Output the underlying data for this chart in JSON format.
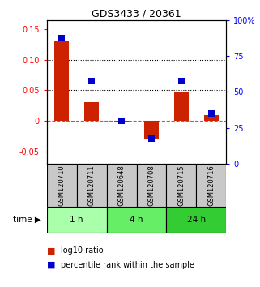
{
  "title": "GDS3433 / 20361",
  "samples": [
    "GSM120710",
    "GSM120711",
    "GSM120648",
    "GSM120708",
    "GSM120715",
    "GSM120716"
  ],
  "log10_ratio": [
    0.13,
    0.03,
    -0.002,
    -0.03,
    0.047,
    0.01
  ],
  "percentile_rank": [
    87.5,
    57.5,
    30.0,
    17.5,
    57.5,
    35.0
  ],
  "ylim_left": [
    -0.07,
    0.165
  ],
  "ylim_right": [
    0,
    100
  ],
  "yticks_left": [
    -0.05,
    0.0,
    0.05,
    0.1,
    0.15
  ],
  "ytick_labels_left": [
    "-0.05",
    "0",
    "0.05",
    "0.10",
    "0.15"
  ],
  "yticks_right": [
    0,
    25,
    50,
    75,
    100
  ],
  "ytick_labels_right": [
    "0",
    "25",
    "50",
    "75",
    "100%"
  ],
  "hlines": [
    0.05,
    0.1
  ],
  "bar_color": "#cc2200",
  "dot_color": "#0000cc",
  "bar_width": 0.5,
  "dot_size": 30,
  "group_colors": [
    "#aaffaa",
    "#66ee66",
    "#33cc33"
  ],
  "group_labels": [
    "1 h",
    "4 h",
    "24 h"
  ],
  "group_ranges": [
    [
      0,
      2
    ],
    [
      2,
      4
    ],
    [
      4,
      6
    ]
  ],
  "sample_box_color": "#c8c8c8",
  "title_fontsize": 9,
  "tick_fontsize": 7,
  "label_fontsize": 6,
  "time_fontsize": 7.5,
  "legend_fontsize": 7
}
